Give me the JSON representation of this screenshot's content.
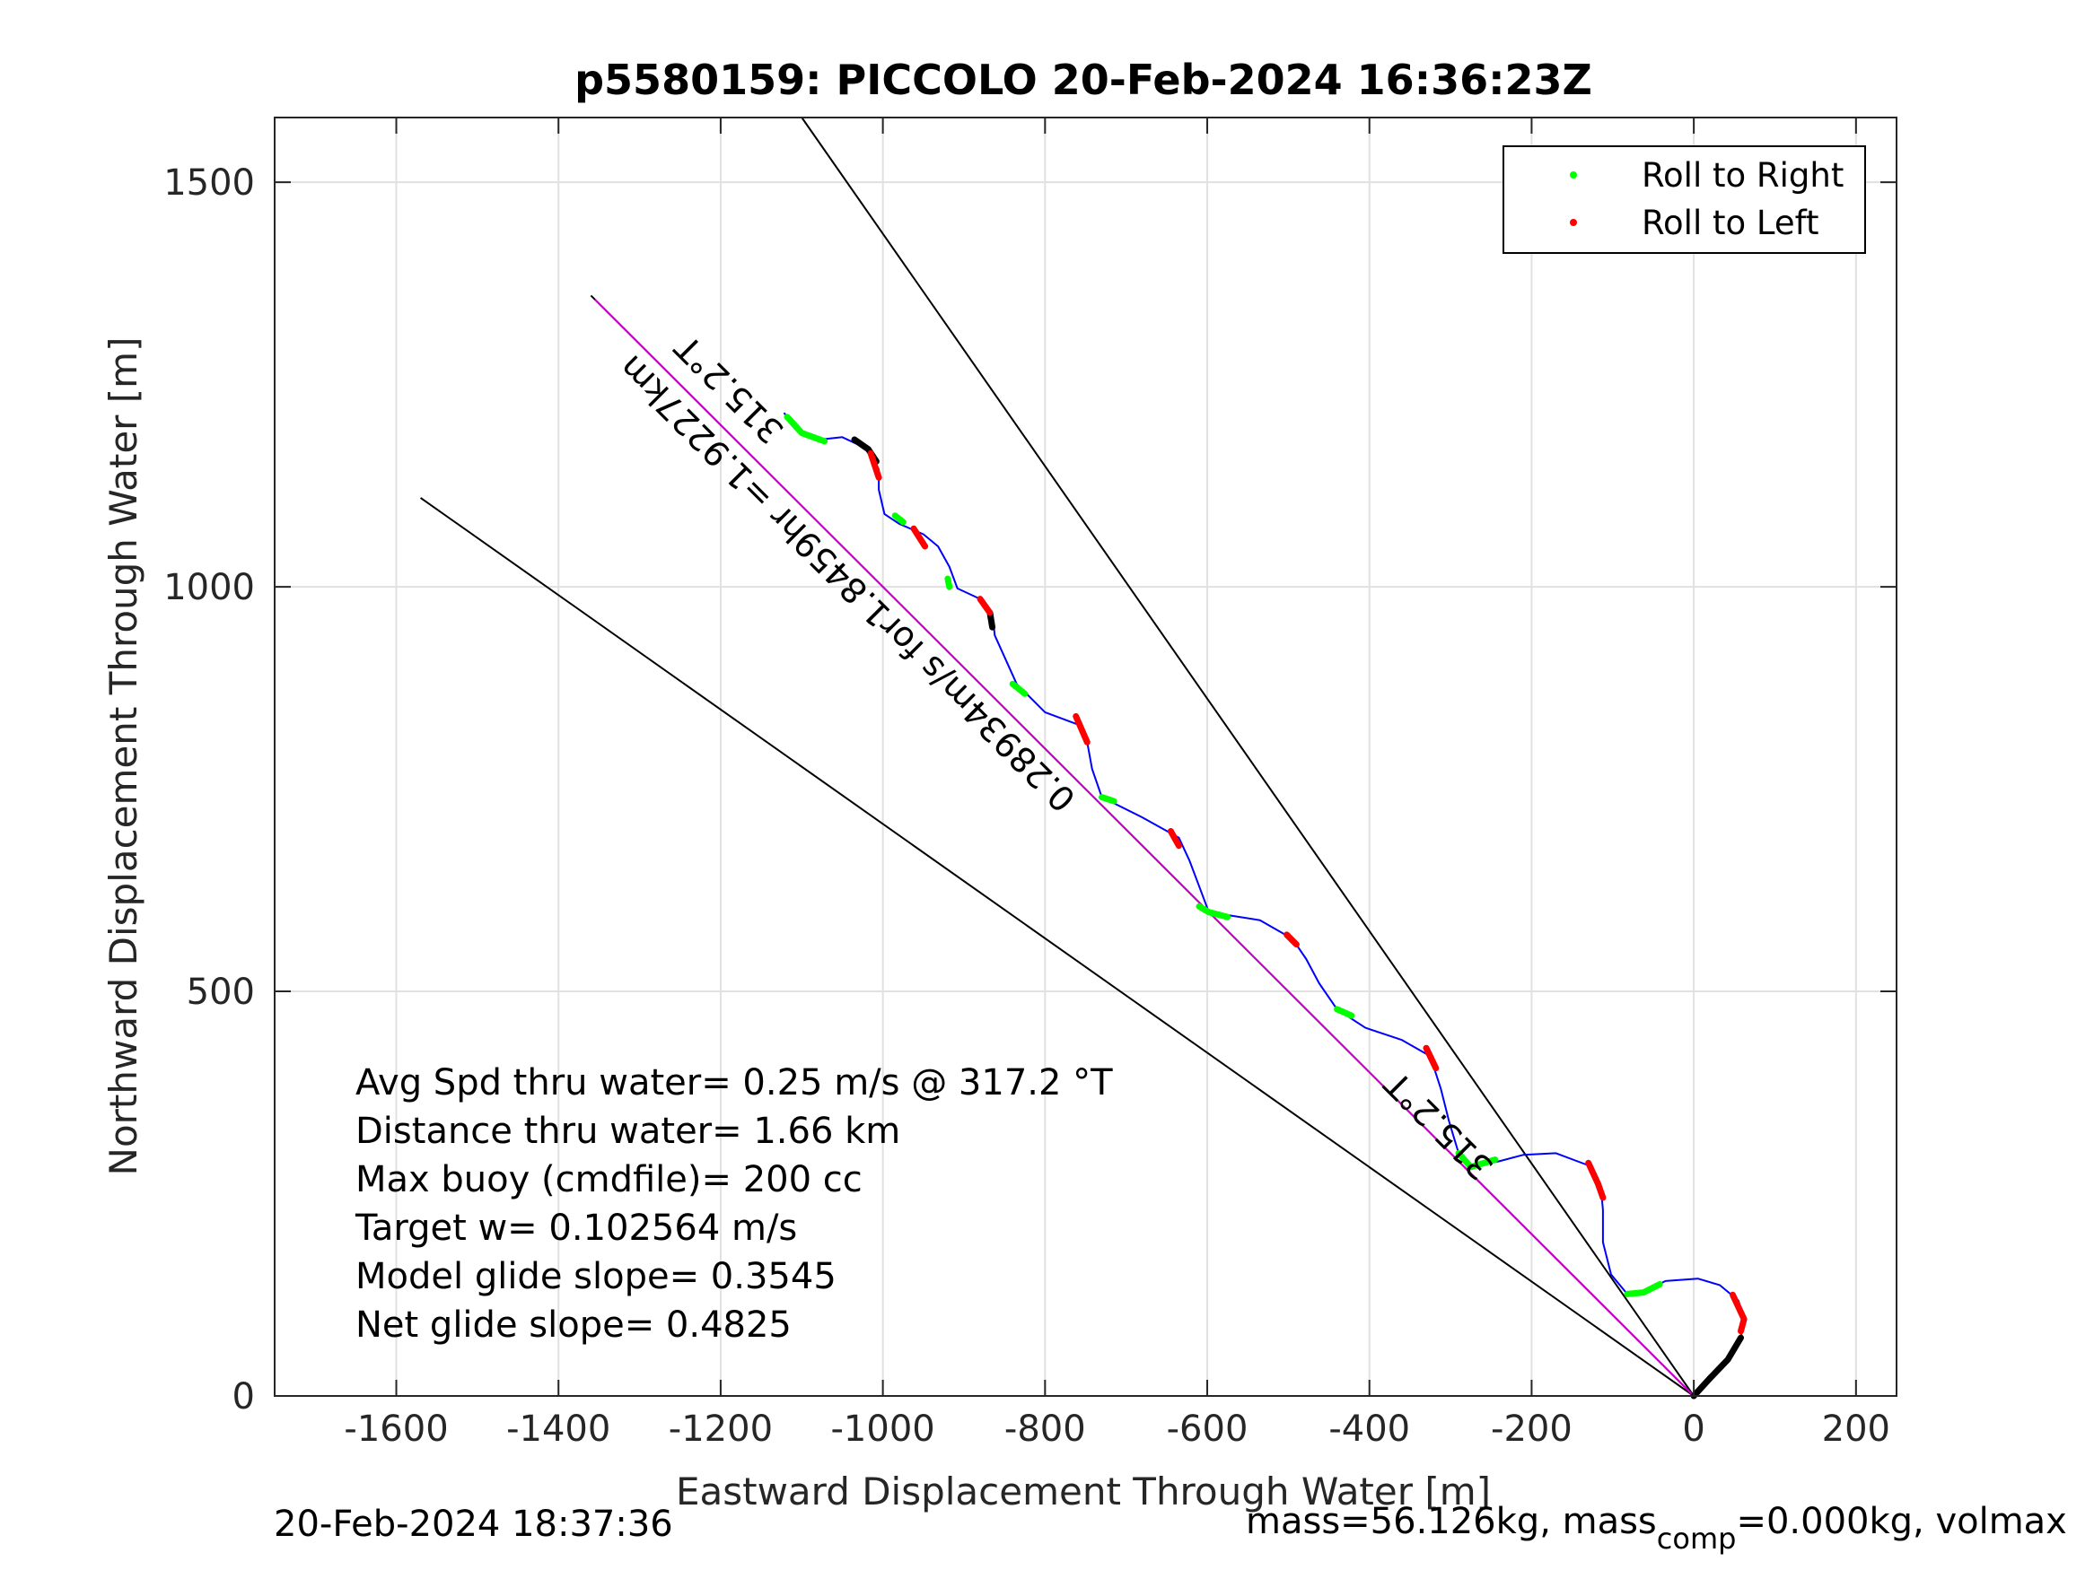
{
  "chart_data": {
    "type": "line",
    "title": "p5580159: PICCOLO 20-Feb-2024 16:36:23Z",
    "xlabel": "Eastward Displacement Through Water [m]",
    "ylabel": "Northward Displacement Through Water [m]",
    "xlim": [
      -1750,
      250
    ],
    "ylim": [
      0,
      1580
    ],
    "xticks": [
      -1600,
      -1400,
      -1200,
      -1000,
      -800,
      -600,
      -400,
      -200,
      0,
      200
    ],
    "yticks": [
      0,
      500,
      1000,
      1500
    ],
    "grid": true,
    "legend": {
      "position": "top-right",
      "entries": [
        {
          "label": "Roll to Right",
          "color": "#00ff00"
        },
        {
          "label": "Roll to Left",
          "color": "#ff0000"
        }
      ]
    },
    "track": {
      "color": "#0000ff",
      "points": [
        [
          0,
          0
        ],
        [
          20,
          22
        ],
        [
          42,
          45
        ],
        [
          58,
          72
        ],
        [
          62,
          95
        ],
        [
          55,
          118
        ],
        [
          32,
          137
        ],
        [
          5,
          145
        ],
        [
          -35,
          142
        ],
        [
          -62,
          128
        ],
        [
          -82,
          126
        ],
        [
          -102,
          150
        ],
        [
          -112,
          190
        ],
        [
          -112,
          230
        ],
        [
          -115,
          262
        ],
        [
          -130,
          285
        ],
        [
          -170,
          300
        ],
        [
          -210,
          298
        ],
        [
          -240,
          290
        ],
        [
          -275,
          283
        ],
        [
          -290,
          300
        ],
        [
          -302,
          340
        ],
        [
          -312,
          380
        ],
        [
          -325,
          420
        ],
        [
          -360,
          440
        ],
        [
          -405,
          455
        ],
        [
          -440,
          478
        ],
        [
          -462,
          510
        ],
        [
          -478,
          540
        ],
        [
          -495,
          565
        ],
        [
          -535,
          588
        ],
        [
          -598,
          598
        ],
        [
          -610,
          630
        ],
        [
          -622,
          662
        ],
        [
          -635,
          690
        ],
        [
          -680,
          715
        ],
        [
          -730,
          740
        ],
        [
          -742,
          775
        ],
        [
          -748,
          808
        ],
        [
          -760,
          830
        ],
        [
          -800,
          845
        ],
        [
          -835,
          880
        ],
        [
          -862,
          940
        ],
        [
          -865,
          968
        ],
        [
          -880,
          985
        ],
        [
          -908,
          998
        ],
        [
          -918,
          1025
        ],
        [
          -932,
          1050
        ],
        [
          -950,
          1065
        ],
        [
          -980,
          1078
        ],
        [
          -998,
          1090
        ],
        [
          -1005,
          1120
        ],
        [
          -1005,
          1145
        ],
        [
          -1018,
          1170
        ],
        [
          -1050,
          1185
        ],
        [
          -1078,
          1182
        ],
        [
          -1100,
          1190
        ],
        [
          -1122,
          1215
        ]
      ]
    },
    "roll_right": [
      [
        [
          -42,
          138
        ],
        [
          -62,
          128
        ],
        [
          -82,
          126
        ]
      ],
      [
        [
          -245,
          292
        ],
        [
          -275,
          283
        ],
        [
          -290,
          300
        ]
      ],
      [
        [
          -422,
          470
        ],
        [
          -440,
          478
        ]
      ],
      [
        [
          -575,
          592
        ],
        [
          -598,
          598
        ],
        [
          -610,
          605
        ]
      ],
      [
        [
          -715,
          735
        ],
        [
          -730,
          740
        ]
      ],
      [
        [
          -825,
          868
        ],
        [
          -840,
          880
        ]
      ],
      [
        [
          -918,
          1000
        ],
        [
          -920,
          1010
        ]
      ],
      [
        [
          -975,
          1080
        ],
        [
          -985,
          1088
        ]
      ],
      [
        [
          -1072,
          1180
        ],
        [
          -1100,
          1190
        ],
        [
          -1118,
          1210
        ]
      ]
    ],
    "roll_left": [
      [
        [
          48,
          125
        ],
        [
          62,
          95
        ],
        [
          58,
          80
        ]
      ],
      [
        [
          -130,
          288
        ],
        [
          -118,
          262
        ],
        [
          -112,
          245
        ]
      ],
      [
        [
          -330,
          430
        ],
        [
          -318,
          405
        ]
      ],
      [
        [
          -502,
          570
        ],
        [
          -490,
          558
        ]
      ],
      [
        [
          -645,
          698
        ],
        [
          -635,
          680
        ]
      ],
      [
        [
          -762,
          840
        ],
        [
          -748,
          808
        ]
      ],
      [
        [
          -880,
          985
        ],
        [
          -868,
          968
        ]
      ],
      [
        [
          -962,
          1072
        ],
        [
          -948,
          1050
        ]
      ],
      [
        [
          -1015,
          1165
        ],
        [
          -1005,
          1135
        ]
      ]
    ],
    "black_segments": [
      [
        [
          0,
          0
        ],
        [
          20,
          22
        ],
        [
          42,
          45
        ],
        [
          58,
          72
        ]
      ],
      [
        [
          -1035,
          1182
        ],
        [
          -1018,
          1170
        ],
        [
          -1008,
          1155
        ]
      ],
      [
        [
          -868,
          968
        ],
        [
          -865,
          950
        ]
      ]
    ],
    "reference_lines": [
      {
        "color": "#000000",
        "points": [
          [
            0,
            0
          ],
          [
            -1100,
            1580
          ]
        ]
      },
      {
        "color": "#000000",
        "points": [
          [
            0,
            0
          ],
          [
            -1360,
            1360
          ]
        ]
      },
      {
        "color": "#000000",
        "points": [
          [
            0,
            0
          ],
          [
            -1570,
            1110
          ]
        ]
      },
      {
        "color": "#cc00cc",
        "points": [
          [
            0,
            0
          ],
          [
            -1355,
            1355
          ]
        ]
      }
    ],
    "annotations": [
      {
        "text": "315.2°T",
        "x": -1120,
        "y": 1195,
        "rotation": 45
      },
      {
        "text": "0.28934m/s for1.8459hr =1.9227km",
        "x": -760,
        "y": 740,
        "rotation": 45
      },
      {
        "text": "315.2°T",
        "x": -245,
        "y": 285,
        "rotation": 45
      }
    ]
  },
  "stats": [
    "Avg Spd thru water=  0.25 m/s @ 317.2 °T",
    "Distance thru water=  1.66 km",
    "Max buoy (cmdfile)= 200 cc",
    "Target w= 0.102564 m/s",
    "Model glide slope= 0.3545",
    "Net glide slope= 0.4825"
  ],
  "footer": {
    "timestamp": "20-Feb-2024 18:37:36",
    "mass_prefix": "mass=56.126kg, mass",
    "mass_subscript": "comp",
    "mass_suffix": "=0.000kg, volmax"
  }
}
